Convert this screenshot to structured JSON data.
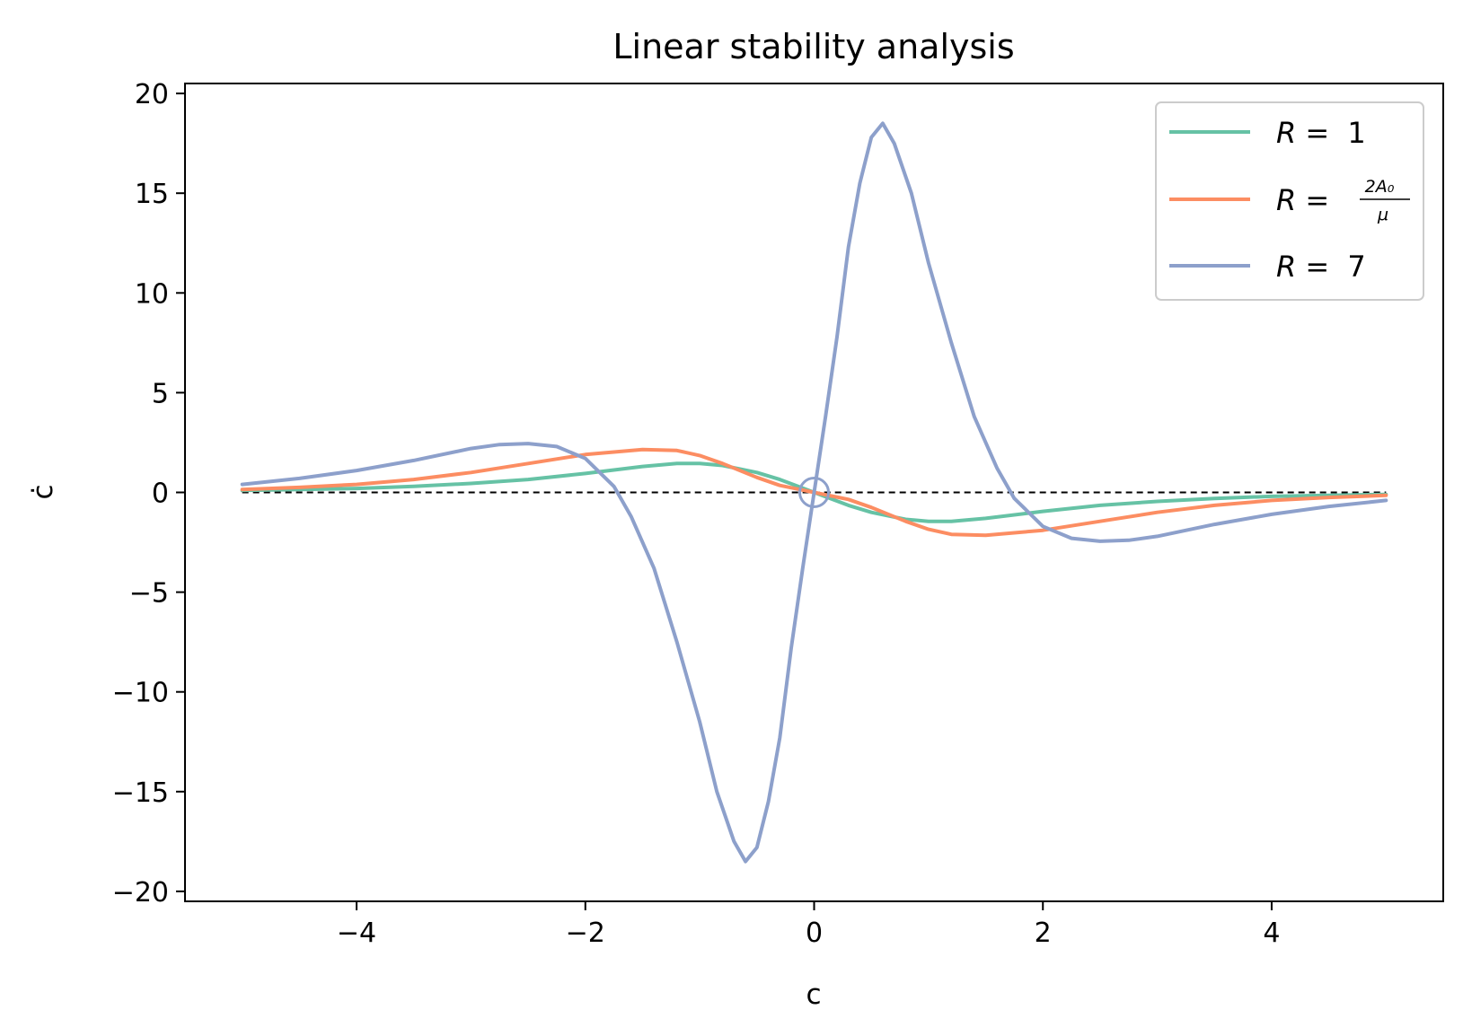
{
  "chart_data": {
    "type": "line",
    "title": "Linear stability analysis",
    "xlabel": "c",
    "ylabel": "ċ",
    "xlim": [
      -5.5,
      5.5
    ],
    "ylim": [
      -20.5,
      20.5
    ],
    "xticks": [
      -4,
      -2,
      0,
      2,
      4
    ],
    "yticks": [
      -20,
      -15,
      -10,
      -5,
      0,
      5,
      10,
      15,
      20
    ],
    "xtick_labels": [
      "−4",
      "−2",
      "0",
      "2",
      "4"
    ],
    "ytick_labels": [
      "−20",
      "−15",
      "−10",
      "−5",
      "0",
      "5",
      "10",
      "15",
      "20"
    ],
    "grid": false,
    "legend_position": "top-right",
    "reference_line": {
      "y": 0,
      "x_range": [
        -5,
        5
      ],
      "style": "dashed",
      "color": "#000000"
    },
    "marker": {
      "x": 0,
      "y": 0,
      "shape": "open-circle",
      "color": "#8da0cb"
    },
    "series": [
      {
        "label_prefix": "R = ",
        "label_value": "1",
        "color": "#66c2a5",
        "x": [
          -5,
          -4.5,
          -4,
          -3.5,
          -3,
          -2.5,
          -2,
          -1.5,
          -1.2,
          -1,
          -0.8,
          -0.5,
          -0.3,
          0,
          0.3,
          0.5,
          0.8,
          1,
          1.2,
          1.5,
          2,
          2.5,
          3,
          3.5,
          4,
          4.5,
          5
        ],
        "y": [
          0.1,
          0.15,
          0.2,
          0.3,
          0.45,
          0.65,
          0.95,
          1.3,
          1.45,
          1.45,
          1.35,
          1.0,
          0.65,
          0,
          -0.65,
          -1.0,
          -1.35,
          -1.45,
          -1.45,
          -1.3,
          -0.95,
          -0.65,
          -0.45,
          -0.3,
          -0.2,
          -0.15,
          -0.1
        ]
      },
      {
        "label_prefix": "R = ",
        "label_num": "2A₀",
        "label_den": "μ",
        "color": "#fc8d62",
        "x": [
          -5,
          -4.5,
          -4,
          -3.5,
          -3,
          -2.5,
          -2,
          -1.5,
          -1.2,
          -1,
          -0.8,
          -0.5,
          -0.3,
          0,
          0.3,
          0.5,
          0.8,
          1,
          1.2,
          1.5,
          2,
          2.5,
          3,
          3.5,
          4,
          4.5,
          5
        ],
        "y": [
          0.15,
          0.25,
          0.4,
          0.65,
          1.0,
          1.45,
          1.9,
          2.15,
          2.1,
          1.85,
          1.45,
          0.75,
          0.35,
          0,
          -0.35,
          -0.75,
          -1.45,
          -1.85,
          -2.1,
          -2.15,
          -1.9,
          -1.45,
          -1.0,
          -0.65,
          -0.4,
          -0.25,
          -0.15
        ]
      },
      {
        "label_prefix": "R = ",
        "label_value": "7",
        "color": "#8da0cb",
        "x": [
          -5,
          -4.5,
          -4,
          -3.5,
          -3,
          -2.75,
          -2.5,
          -2.25,
          -2,
          -1.75,
          -1.6,
          -1.4,
          -1.2,
          -1.0,
          -0.85,
          -0.7,
          -0.6,
          -0.5,
          -0.4,
          -0.3,
          -0.2,
          -0.1,
          0,
          0.1,
          0.2,
          0.3,
          0.4,
          0.5,
          0.6,
          0.7,
          0.85,
          1.0,
          1.2,
          1.4,
          1.6,
          1.75,
          2.0,
          2.25,
          2.5,
          2.75,
          3.0,
          3.5,
          4.0,
          4.5,
          5.0
        ],
        "y": [
          0.4,
          0.7,
          1.1,
          1.6,
          2.2,
          2.4,
          2.45,
          2.3,
          1.7,
          0.3,
          -1.2,
          -3.8,
          -7.5,
          -11.5,
          -15.0,
          -17.5,
          -18.5,
          -17.8,
          -15.5,
          -12.3,
          -7.8,
          -3.8,
          0,
          3.8,
          7.8,
          12.3,
          15.5,
          17.8,
          18.5,
          17.5,
          15.0,
          11.5,
          7.5,
          3.8,
          1.2,
          -0.3,
          -1.7,
          -2.3,
          -2.45,
          -2.4,
          -2.2,
          -1.6,
          -1.1,
          -0.7,
          -0.4
        ]
      }
    ]
  }
}
